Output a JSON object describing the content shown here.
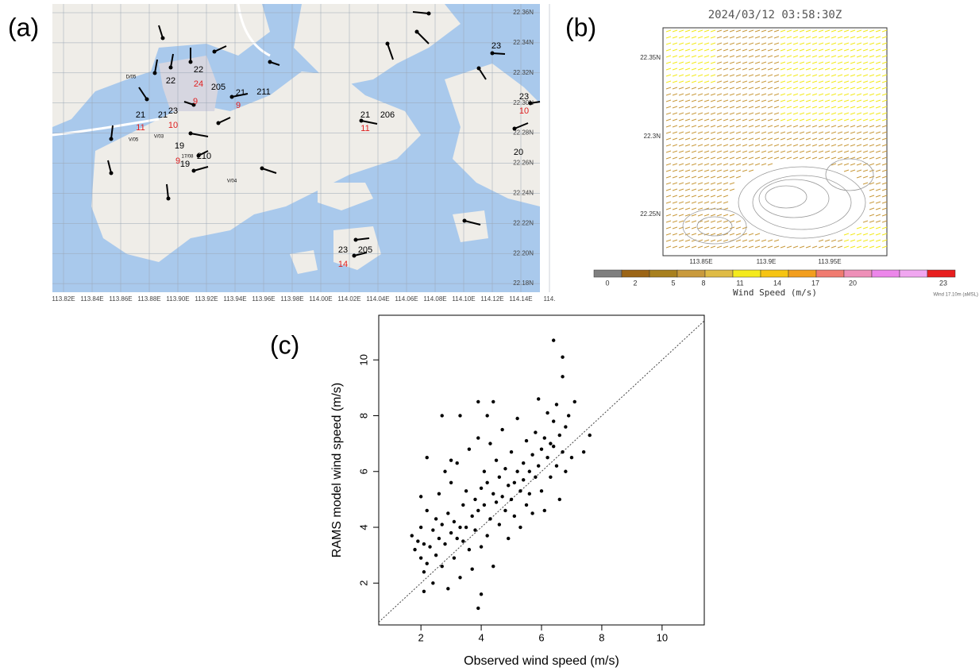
{
  "panel_labels": [
    "(a)",
    "(b)",
    "(c)"
  ],
  "map": {
    "lat_labels": [
      "22.36N",
      "22.34N",
      "22.32N",
      "22.30N",
      "22.28N",
      "22.26N",
      "22.24N",
      "22.22N",
      "22.20N",
      "22.18N"
    ],
    "lon_labels": [
      "113.82E",
      "113.84E",
      "113.86E",
      "113.88E",
      "113.90E",
      "113.92E",
      "113.94E",
      "113.96E",
      "113.98E",
      "114.00E",
      "114.02E",
      "114.04E",
      "114.06E",
      "114.08E",
      "114.10E",
      "114.12E",
      "114.14E",
      "114."
    ],
    "station_labels": [
      "22",
      "22",
      "205",
      "24",
      "9",
      "21",
      "211",
      "21",
      "11",
      "21",
      "23",
      "10",
      "9",
      "21",
      "206",
      "11",
      "23",
      "23",
      "10",
      "20",
      "19",
      "9",
      "210",
      "19",
      "23",
      "205",
      "14"
    ],
    "station_ids": [
      "D/05",
      "V/05",
      "V/03",
      "V/04",
      "17/08"
    ]
  },
  "wind_field": {
    "title": "2024/03/12 03:58:30Z",
    "lat_labels": [
      "22.35N",
      "22.3N",
      "22.25N"
    ],
    "lon_labels": [
      "113.85E",
      "113.9E",
      "113.95E"
    ],
    "colorbar_colors": [
      "#7f7f7f",
      "#9c6516",
      "#a8801e",
      "#c99a3c",
      "#dfbb45",
      "#f4ea1c",
      "#f6c412",
      "#f29e1e",
      "#f07b70",
      "#ee8fb8",
      "#ec86ea",
      "#f0a6f0",
      "#e81e1e"
    ],
    "colorbar_ticks": [
      0,
      2,
      5,
      8,
      11,
      14,
      17,
      20,
      23
    ],
    "colorbar_label": "Wind Speed (m/s)",
    "note": "Wind 17.10m (aMSL)"
  },
  "chart_data": {
    "type": "scatter",
    "xlabel": "Observed wind speed (m/s)",
    "ylabel": "RAMS model wind speed (m/s)",
    "xlim": [
      0.6,
      11.4
    ],
    "ylim": [
      0.5,
      11.6
    ],
    "xticks": [
      2,
      4,
      6,
      8,
      10
    ],
    "yticks": [
      2,
      4,
      6,
      8,
      10
    ],
    "diagonal": true,
    "color": "#000000",
    "x": [
      1.7,
      1.8,
      1.9,
      2.0,
      2.0,
      2.1,
      2.1,
      2.2,
      2.2,
      2.3,
      2.4,
      2.4,
      2.5,
      2.5,
      2.6,
      2.6,
      2.7,
      2.7,
      2.8,
      2.8,
      2.9,
      2.9,
      3.0,
      3.0,
      3.1,
      3.1,
      3.2,
      3.2,
      3.3,
      3.3,
      3.4,
      3.4,
      3.5,
      3.5,
      3.6,
      3.6,
      3.7,
      3.7,
      3.8,
      3.8,
      3.9,
      3.9,
      4.0,
      4.0,
      4.1,
      4.1,
      4.2,
      4.2,
      4.3,
      4.3,
      4.4,
      4.4,
      4.5,
      4.5,
      4.6,
      4.6,
      4.7,
      4.7,
      4.8,
      4.8,
      4.9,
      4.9,
      5.0,
      5.0,
      5.1,
      5.1,
      5.2,
      5.2,
      5.3,
      5.3,
      5.4,
      5.4,
      5.5,
      5.5,
      5.6,
      5.6,
      5.7,
      5.7,
      5.8,
      5.8,
      5.9,
      5.9,
      6.0,
      6.0,
      6.1,
      6.1,
      6.2,
      6.2,
      6.3,
      6.3,
      6.4,
      6.4,
      6.5,
      6.5,
      6.6,
      6.6,
      6.7,
      6.7,
      6.8,
      6.8,
      6.9,
      7.0,
      7.1,
      7.4,
      7.6,
      2.7,
      3.3,
      3.9,
      4.4,
      6.4,
      6.7,
      3.9,
      4.0,
      2.1,
      4.2,
      2.0,
      2.2,
      3.0
    ],
    "values": [
      3.7,
      3.2,
      3.5,
      2.9,
      4.0,
      2.4,
      3.4,
      2.7,
      4.6,
      3.3,
      3.9,
      2.0,
      4.3,
      3.0,
      3.6,
      5.2,
      2.6,
      4.1,
      3.4,
      6.0,
      4.5,
      1.8,
      3.8,
      5.6,
      2.9,
      4.2,
      3.6,
      6.3,
      4.0,
      2.2,
      4.8,
      3.5,
      5.3,
      4.0,
      3.2,
      6.8,
      4.4,
      2.5,
      5.0,
      3.9,
      4.6,
      7.2,
      5.4,
      3.3,
      4.8,
      6.0,
      3.7,
      5.6,
      4.3,
      7.0,
      5.2,
      2.6,
      4.9,
      6.4,
      4.1,
      5.8,
      5.1,
      7.5,
      4.6,
      6.1,
      5.5,
      3.6,
      5.0,
      6.7,
      5.6,
      4.4,
      6.0,
      7.9,
      5.3,
      4.0,
      6.3,
      5.7,
      4.8,
      7.1,
      6.0,
      5.2,
      6.6,
      4.5,
      7.4,
      5.8,
      6.2,
      8.6,
      6.8,
      5.3,
      7.2,
      4.6,
      6.5,
      8.1,
      7.0,
      5.8,
      6.9,
      7.8,
      6.2,
      8.4,
      7.3,
      5.0,
      6.7,
      9.4,
      7.6,
      6.0,
      8.0,
      6.5,
      8.5,
      6.7,
      7.3,
      8.0,
      8.0,
      8.5,
      8.5,
      10.7,
      10.1,
      1.1,
      1.6,
      1.7,
      8.0,
      5.1,
      6.5,
      6.4
    ]
  }
}
